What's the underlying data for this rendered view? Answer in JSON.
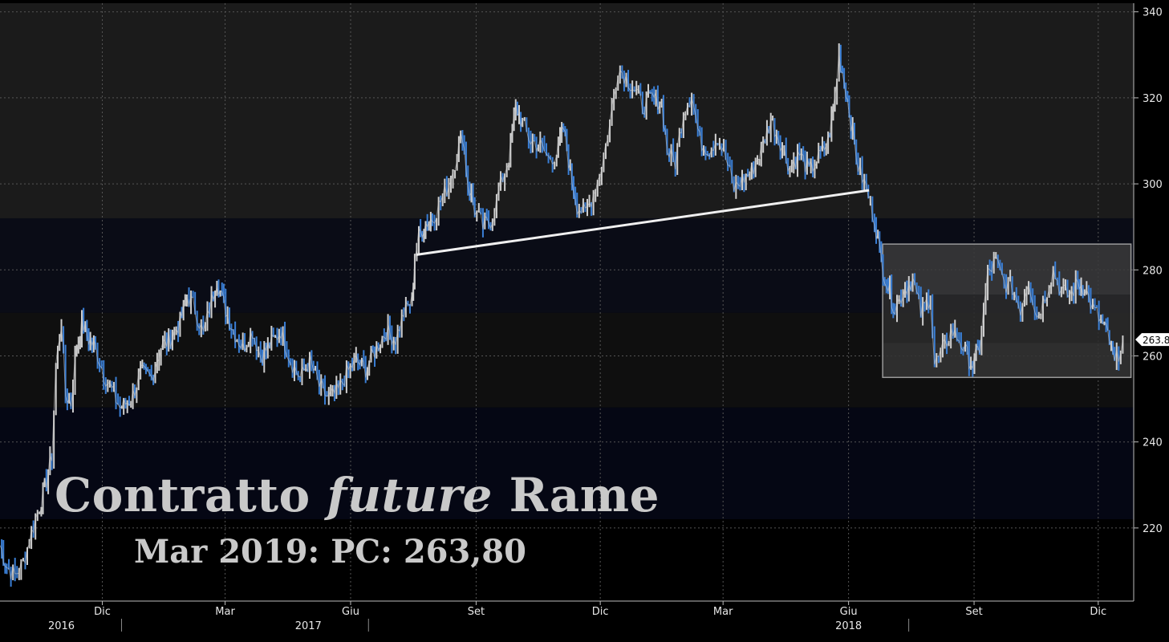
{
  "title": {
    "part1": "Contratto",
    "part2": "future",
    "part3": "Rame"
  },
  "subtitle": "Mar 2019: PC: 263,80",
  "colors": {
    "background": "#000000",
    "band_dark_gray": "#1b1b1b",
    "band_navy": "#0a0c16",
    "band_black": "#0f0f0f",
    "band_deep_navy": "#050714",
    "price_up": "#cfcfcf",
    "price_down": "#3a7fd6",
    "trendline": "#f0f0f0",
    "range_box": "#3a3a3a",
    "grid": "#555555"
  },
  "chart_data": {
    "type": "line",
    "title": "Contratto future Rame",
    "subtitle": "Mar 2019: PC: 263,80",
    "y_ticks": [
      220,
      240,
      260,
      280,
      300,
      320,
      340
    ],
    "ylim": [
      203,
      342
    ],
    "y_axis_position": "right",
    "last_value": 263.8,
    "last_value_label": "263.8",
    "x_month_labels": [
      {
        "label": "Dic",
        "date": "2016-12"
      },
      {
        "label": "Mar",
        "date": "2017-03"
      },
      {
        "label": "Giu",
        "date": "2017-06"
      },
      {
        "label": "Set",
        "date": "2017-09"
      },
      {
        "label": "Dic",
        "date": "2017-12"
      },
      {
        "label": "Mar",
        "date": "2018-03"
      },
      {
        "label": "Giu",
        "date": "2018-06"
      },
      {
        "label": "Set",
        "date": "2018-09"
      },
      {
        "label": "Dic",
        "date": "2018-12"
      }
    ],
    "x_year_labels": [
      {
        "label": "2016",
        "date": "2016-11"
      },
      {
        "label": "2017",
        "date": "2017-05"
      },
      {
        "label": "2018",
        "date": "2018-06"
      }
    ],
    "xlim": [
      "2016-10-01",
      "2019-01-10"
    ],
    "grid": true,
    "series": [
      {
        "points": [
          [
            "2016-10-01",
            216
          ],
          [
            "2016-10-06",
            211
          ],
          [
            "2016-10-12",
            209
          ],
          [
            "2016-10-18",
            212
          ],
          [
            "2016-10-24",
            219
          ],
          [
            "2016-10-30",
            225
          ],
          [
            "2016-11-04",
            231
          ],
          [
            "2016-11-08",
            237
          ],
          [
            "2016-11-11",
            258
          ],
          [
            "2016-11-15",
            268
          ],
          [
            "2016-11-18",
            251
          ],
          [
            "2016-11-22",
            249
          ],
          [
            "2016-11-25",
            259
          ],
          [
            "2016-11-30",
            268
          ],
          [
            "2016-12-05",
            264
          ],
          [
            "2016-12-10",
            262
          ],
          [
            "2016-12-16",
            256
          ],
          [
            "2016-12-22",
            252
          ],
          [
            "2016-12-28",
            248
          ],
          [
            "2017-01-05",
            250
          ],
          [
            "2017-01-12",
            256
          ],
          [
            "2017-01-20",
            255
          ],
          [
            "2017-01-27",
            262
          ],
          [
            "2017-02-03",
            264
          ],
          [
            "2017-02-10",
            268
          ],
          [
            "2017-02-15",
            274
          ],
          [
            "2017-02-21",
            271
          ],
          [
            "2017-02-27",
            265
          ],
          [
            "2017-03-05",
            273
          ],
          [
            "2017-03-09",
            278
          ],
          [
            "2017-03-14",
            272
          ],
          [
            "2017-03-21",
            266
          ],
          [
            "2017-03-28",
            262
          ],
          [
            "2017-04-04",
            266
          ],
          [
            "2017-04-10",
            260
          ],
          [
            "2017-04-18",
            263
          ],
          [
            "2017-04-25",
            266
          ],
          [
            "2017-05-02",
            259
          ],
          [
            "2017-05-09",
            255
          ],
          [
            "2017-05-16",
            259
          ],
          [
            "2017-05-23",
            253
          ],
          [
            "2017-05-30",
            250
          ],
          [
            "2017-06-06",
            252
          ],
          [
            "2017-06-12",
            256
          ],
          [
            "2017-06-19",
            259
          ],
          [
            "2017-06-26",
            257
          ],
          [
            "2017-07-04",
            262
          ],
          [
            "2017-07-11",
            266
          ],
          [
            "2017-07-18",
            264
          ],
          [
            "2017-07-24",
            270
          ],
          [
            "2017-07-30",
            273
          ],
          [
            "2017-08-01",
            283
          ],
          [
            "2017-08-04",
            288
          ],
          [
            "2017-08-09",
            291
          ],
          [
            "2017-08-14",
            292
          ],
          [
            "2017-08-20",
            296
          ],
          [
            "2017-08-26",
            300
          ],
          [
            "2017-09-01",
            307
          ],
          [
            "2017-09-05",
            312
          ],
          [
            "2017-09-09",
            300
          ],
          [
            "2017-09-14",
            294
          ],
          [
            "2017-09-20",
            290
          ],
          [
            "2017-09-27",
            292
          ],
          [
            "2017-10-03",
            300
          ],
          [
            "2017-10-09",
            306
          ],
          [
            "2017-10-14",
            318
          ],
          [
            "2017-10-19",
            314
          ],
          [
            "2017-10-25",
            310
          ],
          [
            "2017-11-01",
            309
          ],
          [
            "2017-11-07",
            306
          ],
          [
            "2017-11-13",
            307
          ],
          [
            "2017-11-18",
            313
          ],
          [
            "2017-11-23",
            303
          ],
          [
            "2017-11-28",
            295
          ],
          [
            "2017-12-04",
            293
          ],
          [
            "2017-12-10",
            298
          ],
          [
            "2017-12-16",
            304
          ],
          [
            "2017-12-22",
            314
          ],
          [
            "2017-12-28",
            327
          ],
          [
            "2018-01-03",
            325
          ],
          [
            "2018-01-09",
            322
          ],
          [
            "2018-01-15",
            318
          ],
          [
            "2018-01-22",
            320
          ],
          [
            "2018-01-29",
            319
          ],
          [
            "2018-02-02",
            308
          ],
          [
            "2018-02-08",
            305
          ],
          [
            "2018-02-14",
            317
          ],
          [
            "2018-02-20",
            321
          ],
          [
            "2018-02-26",
            310
          ],
          [
            "2018-03-05",
            308
          ],
          [
            "2018-03-11",
            311
          ],
          [
            "2018-03-17",
            306
          ],
          [
            "2018-03-23",
            299
          ],
          [
            "2018-03-29",
            301
          ],
          [
            "2018-04-05",
            303
          ],
          [
            "2018-04-12",
            308
          ],
          [
            "2018-04-19",
            315
          ],
          [
            "2018-04-26",
            310
          ],
          [
            "2018-05-03",
            304
          ],
          [
            "2018-05-10",
            307
          ],
          [
            "2018-05-17",
            303
          ],
          [
            "2018-05-24",
            306
          ],
          [
            "2018-05-31",
            310
          ],
          [
            "2018-06-05",
            320
          ],
          [
            "2018-06-08",
            330
          ],
          [
            "2018-06-13",
            322
          ],
          [
            "2018-06-18",
            312
          ],
          [
            "2018-06-22",
            304
          ],
          [
            "2018-06-28",
            299
          ],
          [
            "2018-07-04",
            292
          ],
          [
            "2018-07-09",
            282
          ],
          [
            "2018-07-14",
            276
          ],
          [
            "2018-07-19",
            271
          ],
          [
            "2018-07-25",
            275
          ],
          [
            "2018-08-01",
            278
          ],
          [
            "2018-08-07",
            270
          ],
          [
            "2018-08-14",
            274
          ],
          [
            "2018-08-17",
            258
          ],
          [
            "2018-08-23",
            261
          ],
          [
            "2018-08-29",
            266
          ],
          [
            "2018-09-04",
            264
          ],
          [
            "2018-09-10",
            260
          ],
          [
            "2018-09-14",
            258
          ],
          [
            "2018-09-19",
            262
          ],
          [
            "2018-09-25",
            279
          ],
          [
            "2018-10-01",
            282
          ],
          [
            "2018-10-07",
            277
          ],
          [
            "2018-10-13",
            276
          ],
          [
            "2018-10-19",
            271
          ],
          [
            "2018-10-25",
            278
          ],
          [
            "2018-10-31",
            269
          ],
          [
            "2018-11-06",
            274
          ],
          [
            "2018-11-12",
            280
          ],
          [
            "2018-11-18",
            275
          ],
          [
            "2018-11-24",
            274
          ],
          [
            "2018-11-30",
            277
          ],
          [
            "2018-12-05",
            276
          ],
          [
            "2018-12-11",
            271
          ],
          [
            "2018-12-17",
            268
          ],
          [
            "2018-12-22",
            265
          ],
          [
            "2018-12-27",
            258
          ],
          [
            "2019-01-02",
            263.8
          ]
        ]
      }
    ],
    "annotations": [
      {
        "type": "trendline",
        "from": [
          "2017-08-02",
          283.5
        ],
        "to": [
          "2018-06-30",
          298.5
        ]
      },
      {
        "type": "range_box",
        "x_from": "2018-07-10",
        "x_to": "2019-01-08",
        "y_low": 255,
        "y_high": 286
      }
    ]
  }
}
